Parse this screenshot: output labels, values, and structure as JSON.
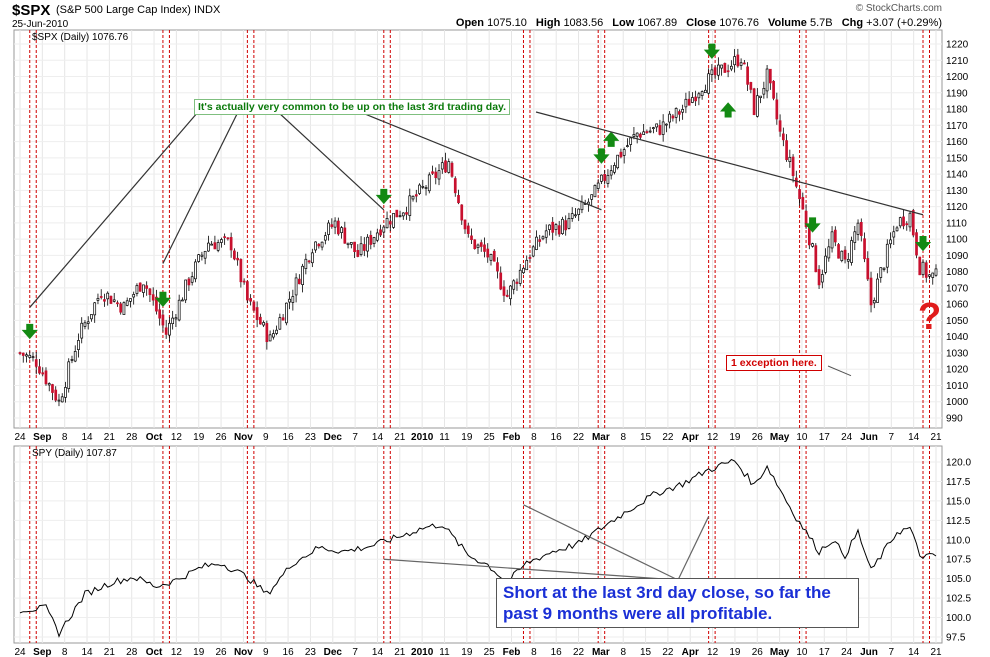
{
  "header": {
    "symbol": "$SPX",
    "name": "(S&P 500 Large Cap Index) INDX",
    "date": "25-Jun-2010",
    "brand": "© StockCharts.com",
    "open_label": "Open",
    "open": "1075.10",
    "high_label": "High",
    "high": "1083.56",
    "low_label": "Low",
    "low": "1067.89",
    "close_label": "Close",
    "close": "1076.76",
    "volume_label": "Volume",
    "volume": "5.7B",
    "chg_label": "Chg",
    "chg": "+3.07 (+0.29%)"
  },
  "colors": {
    "up": "#ffffff",
    "down": "#c8102e",
    "marker": "#d00000",
    "arrow": "#138a13",
    "note_green": "#0b7a0b",
    "note_blue": "#1a2fd6"
  },
  "chart_data": [
    {
      "type": "candlestick",
      "legend": "$SPX (Daily) 1076.76",
      "ylim": [
        990,
        1220
      ],
      "yticks": [
        990,
        1000,
        1010,
        1020,
        1030,
        1040,
        1050,
        1060,
        1070,
        1080,
        1090,
        1100,
        1110,
        1120,
        1130,
        1140,
        1150,
        1160,
        1170,
        1180,
        1190,
        1200,
        1210,
        1220
      ],
      "x_ticks": [
        "24",
        "Sep",
        "8",
        "14",
        "21",
        "28",
        "Oct",
        "12",
        "19",
        "26",
        "Nov",
        "9",
        "16",
        "23",
        "Dec",
        "7",
        "14",
        "21",
        "2010",
        "11",
        "19",
        "25",
        "Feb",
        "8",
        "16",
        "22",
        "Mar",
        "8",
        "15",
        "22",
        "Apr",
        "12",
        "19",
        "26",
        "May",
        "10",
        "17",
        "24",
        "Jun",
        "7",
        "14",
        "21"
      ],
      "anchors": [
        [
          0,
          1030
        ],
        [
          5,
          1025
        ],
        [
          12,
          1000
        ],
        [
          18,
          1040
        ],
        [
          25,
          1068
        ],
        [
          32,
          1058
        ],
        [
          38,
          1075
        ],
        [
          45,
          1042
        ],
        [
          52,
          1075
        ],
        [
          58,
          1098
        ],
        [
          65,
          1097
        ],
        [
          70,
          1062
        ],
        [
          77,
          1038
        ],
        [
          84,
          1068
        ],
        [
          90,
          1096
        ],
        [
          97,
          1110
        ],
        [
          104,
          1090
        ],
        [
          112,
          1110
        ],
        [
          119,
          1120
        ],
        [
          126,
          1135
        ],
        [
          132,
          1148
        ],
        [
          138,
          1100
        ],
        [
          144,
          1090
        ],
        [
          150,
          1065
        ],
        [
          156,
          1088
        ],
        [
          162,
          1105
        ],
        [
          169,
          1110
        ],
        [
          176,
          1125
        ],
        [
          183,
          1148
        ],
        [
          190,
          1165
        ],
        [
          197,
          1168
        ],
        [
          204,
          1180
        ],
        [
          210,
          1195
        ],
        [
          217,
          1205
        ],
        [
          222,
          1212
        ],
        [
          226,
          1180
        ],
        [
          230,
          1200
        ],
        [
          234,
          1165
        ],
        [
          238,
          1140
        ],
        [
          242,
          1110
        ],
        [
          246,
          1075
        ],
        [
          250,
          1100
        ],
        [
          254,
          1085
        ],
        [
          258,
          1110
        ],
        [
          262,
          1060
        ],
        [
          266,
          1086
        ],
        [
          270,
          1110
        ],
        [
          274,
          1115
        ],
        [
          277,
          1083
        ],
        [
          280,
          1077
        ]
      ],
      "green_arrows_x": [
        3,
        44,
        112,
        179,
        213,
        244,
        278
      ],
      "annotation_top": "It's actually very common to be up on the last 3rd trading day.",
      "annotation_exception": "1 exception here.",
      "question": "?"
    },
    {
      "type": "line",
      "legend": "SPY (Daily) 107.87",
      "ylim": [
        97.5,
        120.0
      ],
      "yticks": [
        "97.5",
        "100.0",
        "102.5",
        "105.0",
        "107.5",
        "110.0",
        "112.5",
        "115.0",
        "117.5",
        "120.0"
      ],
      "x_ticks": [
        "24",
        "Sep",
        "8",
        "14",
        "21",
        "28",
        "Oct",
        "12",
        "19",
        "26",
        "Nov",
        "9",
        "16",
        "23",
        "Dec",
        "7",
        "14",
        "21",
        "2010",
        "11",
        "19",
        "25",
        "Feb",
        "8",
        "16",
        "22",
        "Mar",
        "8",
        "15",
        "22",
        "Apr",
        "12",
        "19",
        "26",
        "May",
        "10",
        "17",
        "24",
        "Jun",
        "7",
        "14",
        "21"
      ],
      "anchors": [
        [
          0,
          101.0
        ],
        [
          8,
          101.2
        ],
        [
          12,
          98.0
        ],
        [
          20,
          103.0
        ],
        [
          28,
          104.5
        ],
        [
          35,
          105.2
        ],
        [
          42,
          104.0
        ],
        [
          48,
          104.8
        ],
        [
          56,
          106.5
        ],
        [
          62,
          107.0
        ],
        [
          70,
          105.2
        ],
        [
          76,
          103.0
        ],
        [
          84,
          107.0
        ],
        [
          92,
          109.0
        ],
        [
          100,
          108.5
        ],
        [
          108,
          109.2
        ],
        [
          116,
          110.3
        ],
        [
          124,
          111.5
        ],
        [
          130,
          112.0
        ],
        [
          138,
          108.0
        ],
        [
          144,
          106.8
        ],
        [
          150,
          104.5
        ],
        [
          156,
          107.0
        ],
        [
          164,
          108.5
        ],
        [
          172,
          109.5
        ],
        [
          180,
          111.8
        ],
        [
          188,
          114.0
        ],
        [
          196,
          116.0
        ],
        [
          204,
          117.2
        ],
        [
          212,
          119.0
        ],
        [
          220,
          120.2
        ],
        [
          226,
          117.0
        ],
        [
          230,
          119.5
        ],
        [
          234,
          116.5
        ],
        [
          238,
          113.5
        ],
        [
          242,
          111.0
        ],
        [
          246,
          108.5
        ],
        [
          250,
          110.0
        ],
        [
          254,
          108.0
        ],
        [
          258,
          111.0
        ],
        [
          262,
          106.0
        ],
        [
          266,
          108.5
        ],
        [
          270,
          111.0
        ],
        [
          274,
          111.5
        ],
        [
          277,
          108.0
        ],
        [
          280,
          107.87
        ]
      ],
      "annotation": "Short at the last 3rd day close, so far the past 9 months were all profitable."
    }
  ],
  "marker_days": [
    3,
    5,
    44,
    46,
    70,
    72,
    112,
    114,
    155,
    157,
    178,
    180,
    212,
    214,
    240,
    242,
    278,
    280
  ]
}
